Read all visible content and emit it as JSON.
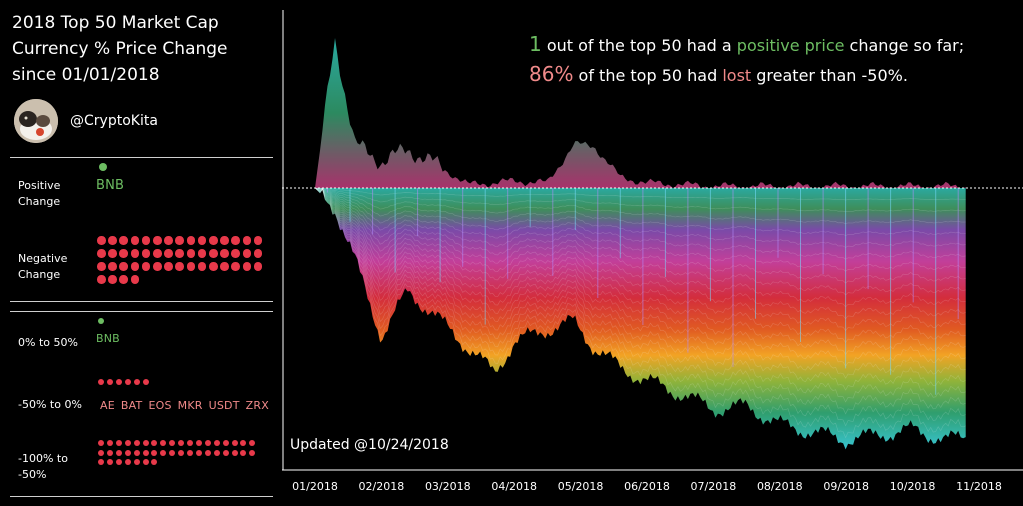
{
  "title_lines": [
    "2018 Top 50 Market Cap",
    "Currency % Price Change",
    "since 01/01/2018"
  ],
  "handle": "@CryptoKita",
  "colors": {
    "positive": "#6dbd62",
    "negative": "#e8394a",
    "loss_text": "#f08a8a",
    "axis": "#ffffff"
  },
  "summary": {
    "positive_label": "Positive Change",
    "negative_label": "Negative Change",
    "positive_coins": "BNB",
    "positive_count": 1,
    "negative_count": 49
  },
  "buckets": {
    "b1_label": "0% to 50%",
    "b1_coins": "BNB",
    "b1_count": 1,
    "b2_label": "-50% to 0%",
    "b2_coins": [
      "AE",
      "BAT",
      "EOS",
      "MKR",
      "USDT",
      "ZRX"
    ],
    "b2_count": 6,
    "b3_label": "-100% to -50%",
    "b3_count": 43
  },
  "headline": {
    "line1_num": "1",
    "line1_pre": " out of the top 50 had a ",
    "line1_hl": "positive price",
    "line1_post": " change so far;",
    "line2_num": "86%",
    "line2_pre": " of the top 50 had ",
    "line2_hl": "lost",
    "line2_post": " greater than -50%."
  },
  "updated": "Updated @10/24/2018",
  "chart_data": {
    "type": "area",
    "x_ticks": [
      "01/2018",
      "02/2018",
      "03/2018",
      "04/2018",
      "05/2018",
      "06/2018",
      "07/2018",
      "08/2018",
      "09/2018",
      "10/2018",
      "11/2018"
    ],
    "x": [
      0,
      0.3,
      0.6,
      1.0,
      1.4,
      1.9,
      2.3,
      2.7,
      3.0,
      3.5,
      3.9,
      4.2,
      4.6,
      5.0,
      5.5,
      6.0,
      6.5,
      7.0,
      7.5,
      8.0,
      8.5,
      9.0,
      9.5,
      9.8
    ],
    "top": [
      0,
      85,
      25,
      15,
      22,
      12,
      2,
      3,
      4,
      3,
      25,
      24,
      6,
      3,
      2,
      1,
      1,
      1,
      1,
      1,
      1,
      1,
      1,
      1
    ],
    "bottom": [
      0,
      -8,
      -28,
      -58,
      -40,
      -52,
      -62,
      -72,
      -60,
      -55,
      -52,
      -62,
      -70,
      -75,
      -80,
      -86,
      -85,
      -92,
      -95,
      -98,
      -96,
      -94,
      -98,
      -97
    ],
    "baseline": 0,
    "gridlines": false
  }
}
